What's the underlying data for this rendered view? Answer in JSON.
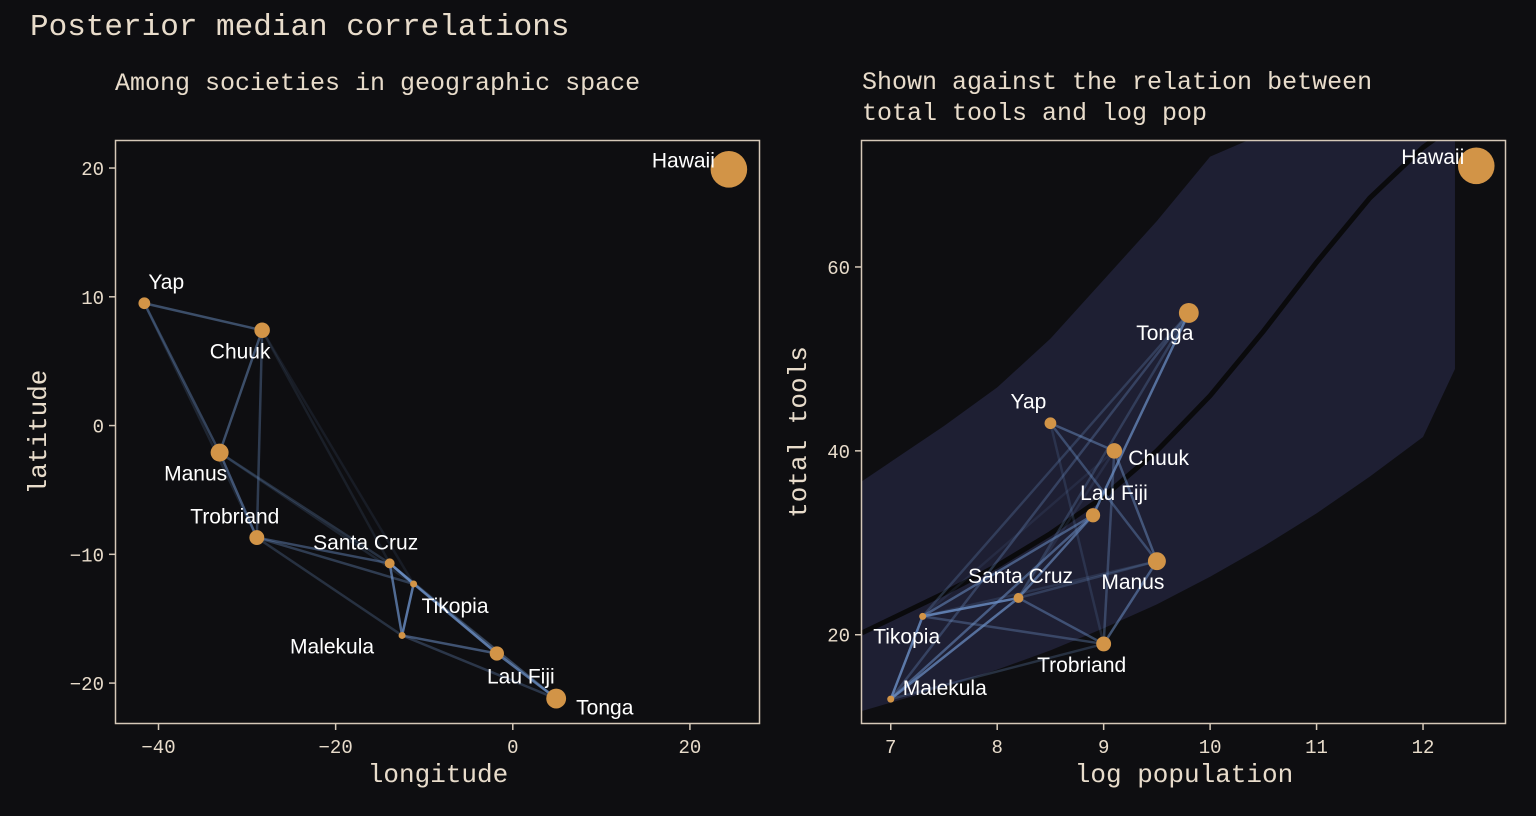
{
  "title": "Posterior median correlations",
  "colors": {
    "background": "#0e0e11",
    "text": "#e8dccb",
    "point": "#d29447",
    "edge": "#6b8fc5",
    "band": "#1e1f33",
    "curve": "#0a0a0c",
    "frame": "#d5c8b8"
  },
  "chart_data": [
    {
      "type": "scatter",
      "subtitle": "Among societies in geographic space",
      "xlabel": "longitude",
      "ylabel": "latitude",
      "xlim": [
        -44.8,
        27.8
      ],
      "ylim": [
        -23.1,
        22.1
      ],
      "xticks": [
        -40,
        -20,
        0,
        20
      ],
      "xtick_labels": [
        "−40",
        "−20",
        "0",
        "20"
      ],
      "yticks": [
        -20,
        -10,
        0,
        10,
        20
      ],
      "ytick_labels": [
        "−20",
        "−10",
        "0",
        "10",
        "20"
      ],
      "points": [
        {
          "name": "Malekula",
          "x": -12.5,
          "y": -16.3,
          "logpop": 7.0,
          "size": 0.35
        },
        {
          "name": "Tikopia",
          "x": -11.2,
          "y": -12.3,
          "logpop": 7.3,
          "size": 0.55
        },
        {
          "name": "Santa Cruz",
          "x": -13.9,
          "y": -10.7,
          "logpop": 8.2,
          "size": 0.75
        },
        {
          "name": "Yap",
          "x": -41.6,
          "y": 9.5,
          "logpop": 8.5,
          "size": 0.8
        },
        {
          "name": "Lau Fiji",
          "x": -1.8,
          "y": -17.7,
          "logpop": 8.9,
          "size": 0.85
        },
        {
          "name": "Trobriand",
          "x": -28.9,
          "y": -8.7,
          "logpop": 9.0,
          "size": 0.87
        },
        {
          "name": "Chuuk",
          "x": -28.3,
          "y": 7.4,
          "logpop": 9.1,
          "size": 0.88
        },
        {
          "name": "Manus",
          "x": -33.1,
          "y": -2.1,
          "logpop": 9.5,
          "size": 0.92
        },
        {
          "name": "Tonga",
          "x": 4.9,
          "y": -21.2,
          "logpop": 9.8,
          "size": 0.95
        },
        {
          "name": "Hawaii",
          "x": 24.4,
          "y": 19.9,
          "logpop": 12.5,
          "size": 1.2
        }
      ]
    },
    {
      "type": "scatter",
      "subtitle": "Shown against the relation between total tools and log pop",
      "subtitle_lines": [
        "Shown against the relation between",
        "total tools and log pop"
      ],
      "xlabel": "log population",
      "ylabel": "total tools",
      "xlim": [
        6.73,
        12.77
      ],
      "ylim": [
        10.4,
        73.7
      ],
      "xticks": [
        7,
        8,
        9,
        10,
        11,
        12
      ],
      "xtick_labels": [
        "7",
        "8",
        "9",
        "10",
        "11",
        "12"
      ],
      "yticks": [
        20,
        40,
        60
      ],
      "ytick_labels": [
        "20",
        "40",
        "60"
      ],
      "points": [
        {
          "name": "Malekula",
          "x": 7.0,
          "y": 13
        },
        {
          "name": "Tikopia",
          "x": 7.3,
          "y": 22
        },
        {
          "name": "Santa Cruz",
          "x": 8.2,
          "y": 24
        },
        {
          "name": "Yap",
          "x": 8.5,
          "y": 43
        },
        {
          "name": "Lau Fiji",
          "x": 8.9,
          "y": 33
        },
        {
          "name": "Trobriand",
          "x": 9.0,
          "y": 19
        },
        {
          "name": "Chuuk",
          "x": 9.1,
          "y": 40
        },
        {
          "name": "Manus",
          "x": 9.5,
          "y": 28
        },
        {
          "name": "Tonga",
          "x": 9.8,
          "y": 55
        },
        {
          "name": "Hawaii",
          "x": 12.5,
          "y": 71
        }
      ],
      "curve": {
        "x": [
          6.73,
          7.5,
          8.0,
          8.5,
          9.0,
          9.5,
          10.0,
          10.5,
          11.0,
          11.5,
          12.0,
          12.3
        ],
        "median": [
          20.2,
          24.5,
          27.5,
          31.0,
          35.0,
          40.0,
          46.0,
          53.0,
          60.5,
          67.5,
          73.0,
          75.5
        ],
        "lower": [
          11.7,
          14.3,
          16.2,
          18.3,
          20.7,
          23.3,
          26.3,
          29.6,
          33.2,
          37.2,
          41.5,
          48.9
        ],
        "upper": [
          36.7,
          42.7,
          46.9,
          52.2,
          58.6,
          65.0,
          72.0,
          74.5,
          76,
          77,
          78,
          79
        ]
      }
    }
  ],
  "edges": [
    {
      "a": "Malekula",
      "b": "Tikopia",
      "rho": 0.9
    },
    {
      "a": "Malekula",
      "b": "Santa Cruz",
      "rho": 0.8
    },
    {
      "a": "Tikopia",
      "b": "Santa Cruz",
      "rho": 0.9
    },
    {
      "a": "Malekula",
      "b": "Lau Fiji",
      "rho": 0.6
    },
    {
      "a": "Tikopia",
      "b": "Lau Fiji",
      "rho": 0.6
    },
    {
      "a": "Santa Cruz",
      "b": "Lau Fiji",
      "rho": 0.7
    },
    {
      "a": "Lau Fiji",
      "b": "Tonga",
      "rho": 0.8
    },
    {
      "a": "Yap",
      "b": "Chuuk",
      "rho": 0.55
    },
    {
      "a": "Yap",
      "b": "Manus",
      "rho": 0.45
    },
    {
      "a": "Chuuk",
      "b": "Manus",
      "rho": 0.55
    },
    {
      "a": "Chuuk",
      "b": "Trobriand",
      "rho": 0.4
    },
    {
      "a": "Manus",
      "b": "Trobriand",
      "rho": 0.6
    },
    {
      "a": "Trobriand",
      "b": "Santa Cruz",
      "rho": 0.5
    },
    {
      "a": "Trobriand",
      "b": "Tikopia",
      "rho": 0.4
    },
    {
      "a": "Trobriand",
      "b": "Malekula",
      "rho": 0.3
    },
    {
      "a": "Malekula",
      "b": "Tonga",
      "rho": 0.35
    },
    {
      "a": "Santa Cruz",
      "b": "Tonga",
      "rho": 0.3
    },
    {
      "a": "Tikopia",
      "b": "Tonga",
      "rho": 0.3
    },
    {
      "a": "Manus",
      "b": "Santa Cruz",
      "rho": 0.3
    },
    {
      "a": "Manus",
      "b": "Tikopia",
      "rho": 0.2
    },
    {
      "a": "Chuuk",
      "b": "Santa Cruz",
      "rho": 0.15
    },
    {
      "a": "Chuuk",
      "b": "Tikopia",
      "rho": 0.12
    },
    {
      "a": "Yap",
      "b": "Trobriand",
      "rho": 0.2
    }
  ]
}
